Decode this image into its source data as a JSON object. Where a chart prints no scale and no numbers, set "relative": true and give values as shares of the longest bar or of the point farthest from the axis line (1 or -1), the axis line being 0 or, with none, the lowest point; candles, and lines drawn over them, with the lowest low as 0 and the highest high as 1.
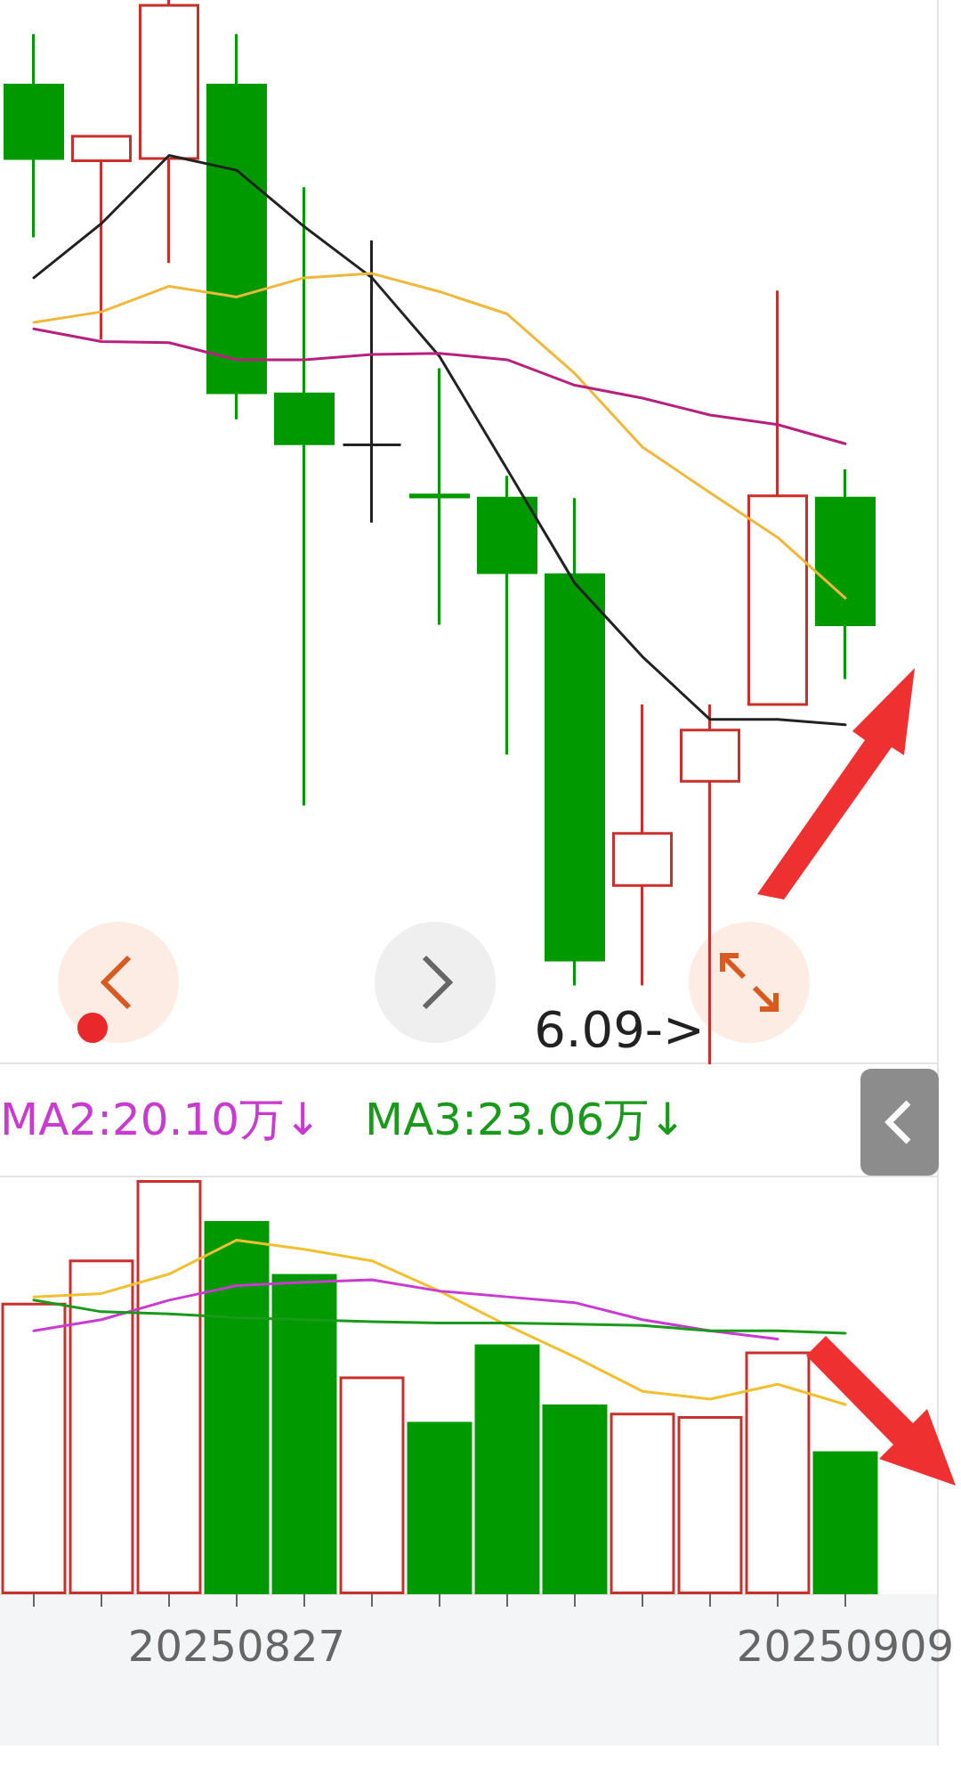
{
  "chart_data": [
    {
      "type": "candlestick",
      "relative": true,
      "tick_labels": false,
      "categories": [
        null,
        null,
        null,
        "20250827",
        null,
        null,
        null,
        null,
        null,
        null,
        null,
        null,
        "20250909"
      ],
      "ohlc": [
        [
          0.92,
          0.968,
          0.777,
          0.851
        ],
        [
          0.849,
          0.872,
          0.681,
          0.872
        ],
        [
          0.851,
          1.0,
          0.753,
          0.995
        ],
        [
          0.92,
          0.968,
          0.606,
          0.631
        ],
        [
          0.63,
          0.824,
          0.243,
          0.583
        ],
        [
          0.582,
          0.774,
          0.509,
          0.582
        ],
        [
          0.535,
          0.654,
          0.413,
          0.533
        ],
        [
          0.532,
          0.553,
          0.291,
          0.462
        ],
        [
          0.46,
          0.532,
          0.074,
          0.098
        ],
        [
          0.168,
          0.338,
          0.074,
          0.217
        ],
        [
          0.266,
          0.338,
          0.0,
          0.314
        ],
        [
          0.338,
          0.727,
          0.338,
          0.534
        ],
        [
          0.532,
          0.559,
          0.362,
          0.413
        ]
      ],
      "colors": [
        "#009a00",
        "#c8302c",
        "#c8302c",
        "#009a00",
        "#009a00",
        "#222222",
        "#009a00",
        "#009a00",
        "#009a00",
        "#c8302c",
        "#c8302c",
        "#c8302c",
        "#009a00"
      ],
      "series": [
        {
          "type": "line",
          "color": "#222222",
          "values": [
            0.739,
            0.79,
            0.854,
            0.84,
            0.787,
            0.739,
            0.665,
            0.559,
            0.452,
            0.383,
            0.324,
            0.324,
            0.319
          ]
        },
        {
          "type": "line",
          "color": "#f0b83a",
          "values": [
            0.697,
            0.707,
            0.731,
            0.721,
            0.739,
            0.743,
            0.726,
            0.705,
            0.649,
            0.58,
            0.537,
            0.495,
            0.438
          ]
        },
        {
          "type": "line",
          "color": "#b8207e",
          "values": [
            0.691,
            0.679,
            0.678,
            0.662,
            0.662,
            0.667,
            0.668,
            0.662,
            0.638,
            0.626,
            0.61,
            0.601,
            0.583
          ]
        }
      ],
      "annotations": [
        "6.09->"
      ]
    },
    {
      "type": "bar",
      "relative": true,
      "tick_labels": "x",
      "categories": [
        null,
        null,
        null,
        "20250827",
        null,
        null,
        null,
        null,
        null,
        null,
        null,
        null,
        "20250909"
      ],
      "series": [
        {
          "type": "bar",
          "colors": [
            "#c8302c",
            "#c8302c",
            "#c8302c",
            "#009a00",
            "#009a00",
            "#c8302c",
            "#009a00",
            "#009a00",
            "#009a00",
            "#c8302c",
            "#c8302c",
            "#c8302c",
            "#009a00"
          ],
          "values": [
            0.704,
            0.808,
            1.0,
            0.901,
            0.773,
            0.526,
            0.416,
            0.603,
            0.458,
            0.438,
            0.43,
            0.586,
            0.345
          ]
        },
        {
          "type": "line",
          "color": "#f0c030",
          "values": [
            0.718,
            0.726,
            0.773,
            0.855,
            0.833,
            0.805,
            0.732,
            0.649,
            0.573,
            0.49,
            0.471,
            0.507,
            0.458
          ]
        },
        {
          "type": "line",
          "name": "MA2:20.10万↓",
          "color": "#c83ad0",
          "values": [
            0.636,
            0.663,
            0.71,
            0.745,
            0.753,
            0.759,
            0.732,
            0.718,
            0.704,
            0.663,
            0.636,
            0.616,
            null
          ]
        },
        {
          "type": "line",
          "name": "MA3:23.06万↓",
          "color": "#1a9a1a",
          "values": [
            0.71,
            0.682,
            0.677,
            0.668,
            0.663,
            0.658,
            0.655,
            0.655,
            0.652,
            0.649,
            0.636,
            0.636,
            0.63
          ]
        }
      ]
    }
  ]
}
